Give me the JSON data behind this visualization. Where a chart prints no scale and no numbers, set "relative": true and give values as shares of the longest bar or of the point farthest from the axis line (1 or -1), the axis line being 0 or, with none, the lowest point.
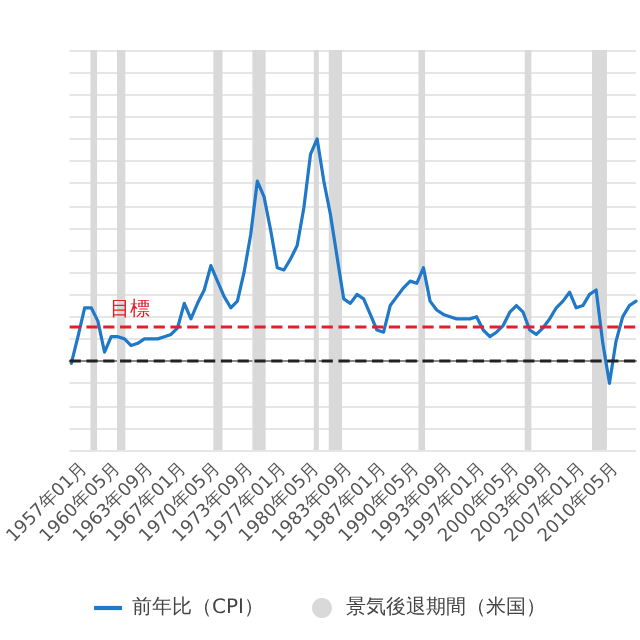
{
  "chart_data": {
    "type": "line",
    "relative": true,
    "legend": "bottom",
    "grid": "y",
    "line_style": "solid",
    "marker": "none",
    "x": [
      "1955-09",
      "1956-05",
      "1957-01",
      "1957-09",
      "1958-05",
      "1959-01",
      "1959-09",
      "1960-05",
      "1961-01",
      "1961-09",
      "1962-05",
      "1963-01",
      "1963-09",
      "1964-05",
      "1965-01",
      "1965-09",
      "1966-05",
      "1967-01",
      "1967-09",
      "1968-05",
      "1969-01",
      "1969-09",
      "1970-05",
      "1971-01",
      "1971-09",
      "1972-05",
      "1973-01",
      "1973-09",
      "1974-05",
      "1975-01",
      "1975-09",
      "1976-05",
      "1977-01",
      "1977-09",
      "1978-05",
      "1979-01",
      "1979-09",
      "1980-05",
      "1981-01",
      "1981-09",
      "1982-05",
      "1983-01",
      "1983-09",
      "1984-05",
      "1985-01",
      "1985-09",
      "1986-05",
      "1987-01",
      "1987-09",
      "1988-05",
      "1989-01",
      "1989-09",
      "1990-05",
      "1991-01",
      "1991-09",
      "1992-05",
      "1993-01",
      "1993-09",
      "1994-05",
      "1995-01",
      "1995-09",
      "1996-05",
      "1997-01",
      "1997-09",
      "1998-05",
      "1999-01",
      "1999-09",
      "2000-05",
      "2001-01",
      "2001-09",
      "2002-05",
      "2003-01",
      "2003-09",
      "2004-05",
      "2005-01",
      "2005-09",
      "2006-05",
      "2007-01",
      "2007-09",
      "2008-05",
      "2009-01",
      "2009-09",
      "2010-05",
      "2011-01",
      "2011-09",
      "2012-05"
    ],
    "series": [
      {
        "name": "前年比（CPI）",
        "color": "#1f78c8",
        "values": [
          -0.01,
          0.11,
          0.24,
          0.24,
          0.18,
          0.04,
          0.11,
          0.11,
          0.1,
          0.07,
          0.08,
          0.1,
          0.1,
          0.1,
          0.11,
          0.12,
          0.15,
          0.26,
          0.19,
          0.26,
          0.32,
          0.43,
          0.36,
          0.29,
          0.24,
          0.27,
          0.4,
          0.57,
          0.81,
          0.74,
          0.59,
          0.42,
          0.41,
          0.46,
          0.52,
          0.69,
          0.93,
          1,
          0.81,
          0.66,
          0.47,
          0.28,
          0.26,
          0.3,
          0.28,
          0.21,
          0.14,
          0.13,
          0.25,
          0.29,
          0.33,
          0.36,
          0.35,
          0.42,
          0.27,
          0.23,
          0.21,
          0.2,
          0.19,
          0.19,
          0.19,
          0.2,
          0.14,
          0.11,
          0.13,
          0.16,
          0.22,
          0.25,
          0.22,
          0.14,
          0.12,
          0.15,
          0.19,
          0.24,
          0.27,
          0.31,
          0.24,
          0.25,
          0.3,
          0.32,
          0.08,
          -0.1,
          0.09,
          0.2,
          0.25,
          0.27
        ]
      }
    ],
    "xlim": [
      "1955-07",
      "2012-05"
    ],
    "xticks": [
      {
        "value": "1957-01",
        "label": "1957年01月"
      },
      {
        "value": "1960-05",
        "label": "1960年05月"
      },
      {
        "value": "1963-09",
        "label": "1963年09月"
      },
      {
        "value": "1967-01",
        "label": "1967年01月"
      },
      {
        "value": "1970-05",
        "label": "1970年05月"
      },
      {
        "value": "1973-09",
        "label": "1973年09月"
      },
      {
        "value": "1977-01",
        "label": "1977年01月"
      },
      {
        "value": "1980-05",
        "label": "1980年05月"
      },
      {
        "value": "1983-09",
        "label": "1983年09月"
      },
      {
        "value": "1987-01",
        "label": "1987年01月"
      },
      {
        "value": "1990-05",
        "label": "1990年05月"
      },
      {
        "value": "1993-09",
        "label": "1993年09月"
      },
      {
        "value": "1997-01",
        "label": "1997年01月"
      },
      {
        "value": "2000-05",
        "label": "2000年05月"
      },
      {
        "value": "2003-09",
        "label": "2003年09月"
      },
      {
        "value": "2007-01",
        "label": "2007年01月"
      },
      {
        "value": "2010-05",
        "label": "2010年05月"
      }
    ],
    "ref_lines": [
      {
        "axis": "y",
        "value": 0,
        "color": "#222222",
        "line_style": "dashed"
      },
      {
        "axis": "y",
        "value": 0.16,
        "label": "目標",
        "color": "#e0202a",
        "line_style": "dashed"
      }
    ],
    "bands": [
      {
        "axis": "x",
        "from": "1957-08",
        "to": "1958-04",
        "label": "景気後退期間（米国）",
        "color": "#d9d9d9"
      },
      {
        "axis": "x",
        "from": "1960-04",
        "to": "1961-02",
        "color": "#d9d9d9"
      },
      {
        "axis": "x",
        "from": "1969-12",
        "to": "1970-11",
        "color": "#d9d9d9"
      },
      {
        "axis": "x",
        "from": "1973-11",
        "to": "1975-03",
        "color": "#d9d9d9"
      },
      {
        "axis": "x",
        "from": "1980-01",
        "to": "1980-07",
        "color": "#d9d9d9"
      },
      {
        "axis": "x",
        "from": "1981-07",
        "to": "1982-11",
        "color": "#d9d9d9"
      },
      {
        "axis": "x",
        "from": "1990-07",
        "to": "1991-03",
        "color": "#d9d9d9"
      },
      {
        "axis": "x",
        "from": "2001-03",
        "to": "2001-11",
        "color": "#d9d9d9"
      },
      {
        "axis": "x",
        "from": "2007-12",
        "to": "2009-06",
        "color": "#d9d9d9"
      }
    ]
  }
}
